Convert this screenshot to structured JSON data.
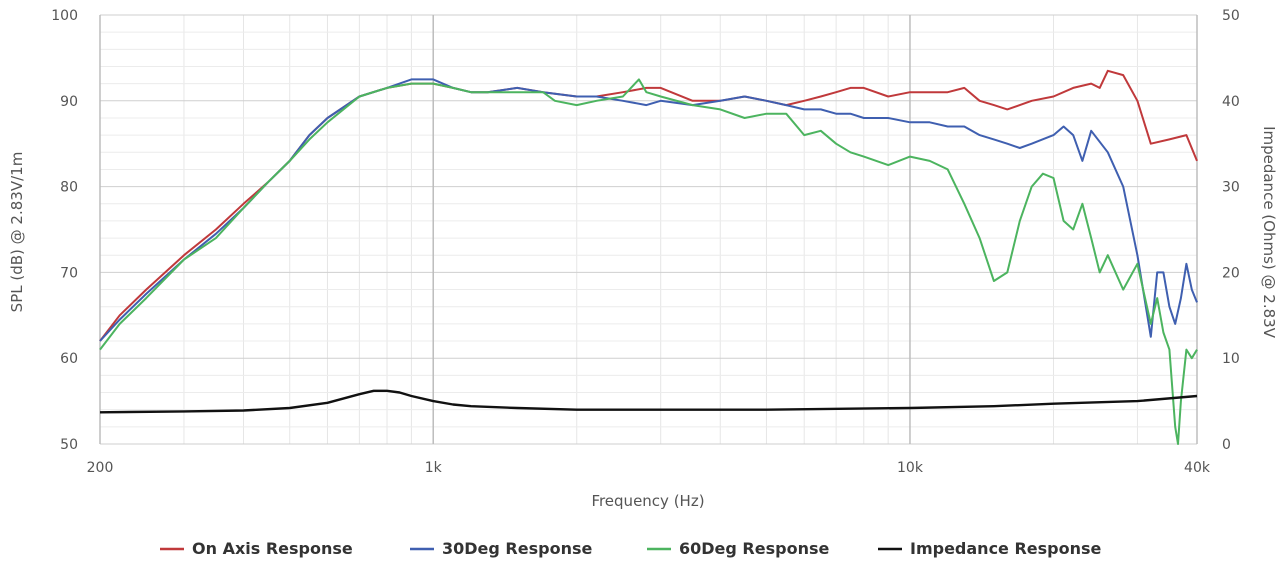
{
  "chart_data": {
    "type": "line",
    "xlabel": "Frequency (Hz)",
    "ylabel_left": "SPL (dB) @ 2.83V/1m",
    "ylabel_right": "Impedance (Ohms) @ 2.83V",
    "x_scale": "log",
    "xlim": [
      200,
      40000
    ],
    "ylim_left": [
      50,
      100
    ],
    "ylim_right": [
      0,
      50
    ],
    "x_ticks": [
      {
        "value": 200,
        "label": "200"
      },
      {
        "value": 1000,
        "label": "1k"
      },
      {
        "value": 10000,
        "label": "10k"
      },
      {
        "value": 40000,
        "label": "40k"
      }
    ],
    "y_ticks_left": [
      {
        "value": 50,
        "label": "50"
      },
      {
        "value": 60,
        "label": "60"
      },
      {
        "value": 70,
        "label": "70"
      },
      {
        "value": 80,
        "label": "80"
      },
      {
        "value": 90,
        "label": "90"
      },
      {
        "value": 100,
        "label": "100"
      }
    ],
    "y_ticks_right": [
      {
        "value": 0,
        "label": "0"
      },
      {
        "value": 10,
        "label": "10"
      },
      {
        "value": 20,
        "label": "20"
      },
      {
        "value": 30,
        "label": "30"
      },
      {
        "value": 40,
        "label": "40"
      },
      {
        "value": 50,
        "label": "50"
      }
    ],
    "grid": true,
    "legend_position": "bottom",
    "series": [
      {
        "name": "On Axis Response",
        "color": "#c0393b",
        "axis": "left",
        "x": [
          200,
          220,
          250,
          300,
          350,
          400,
          450,
          500,
          550,
          600,
          700,
          800,
          900,
          1000,
          1100,
          1200,
          1300,
          1500,
          1700,
          2000,
          2200,
          2500,
          2800,
          3000,
          3500,
          4000,
          4500,
          5000,
          5500,
          6000,
          6500,
          7000,
          7500,
          8000,
          9000,
          10000,
          11000,
          12000,
          13000,
          14000,
          15000,
          16000,
          17000,
          18000,
          20000,
          22000,
          24000,
          25000,
          26000,
          28000,
          30000,
          32000,
          35000,
          38000,
          40000
        ],
        "y": [
          62,
          65,
          68,
          72,
          75,
          78,
          80.5,
          83,
          86,
          88,
          90.5,
          91.5,
          92,
          92,
          91.5,
          91,
          91,
          91.5,
          91,
          90.5,
          90.5,
          91,
          91.5,
          91.5,
          90,
          90,
          90.5,
          90,
          89.5,
          90,
          90.5,
          91,
          91.5,
          91.5,
          90.5,
          91,
          91,
          91,
          91.5,
          90,
          89.5,
          89,
          89.5,
          90,
          90.5,
          91.5,
          92,
          91.5,
          93.5,
          93,
          90,
          85,
          85.5,
          86,
          83
        ]
      },
      {
        "name": "30Deg Response",
        "color": "#3f5fb0",
        "axis": "left",
        "x": [
          200,
          220,
          250,
          300,
          350,
          400,
          450,
          500,
          550,
          600,
          700,
          800,
          900,
          1000,
          1100,
          1200,
          1300,
          1500,
          1700,
          2000,
          2200,
          2500,
          2800,
          3000,
          3500,
          4000,
          4500,
          5000,
          5500,
          6000,
          6500,
          7000,
          7500,
          8000,
          9000,
          10000,
          11000,
          12000,
          13000,
          14000,
          15000,
          16000,
          17000,
          18000,
          20000,
          21000,
          22000,
          23000,
          24000,
          26000,
          28000,
          30000,
          32000,
          33000,
          34000,
          35000,
          36000,
          37000,
          38000,
          39000,
          40000
        ],
        "y": [
          62,
          64.5,
          67.5,
          71.5,
          74.5,
          77.5,
          80.5,
          83,
          86,
          88,
          90.5,
          91.5,
          92.5,
          92.5,
          91.5,
          91,
          91,
          91.5,
          91,
          90.5,
          90.5,
          90,
          89.5,
          90,
          89.5,
          90,
          90.5,
          90,
          89.5,
          89,
          89,
          88.5,
          88.5,
          88,
          88,
          87.5,
          87.5,
          87,
          87,
          86,
          85.5,
          85,
          84.5,
          85,
          86,
          87,
          86,
          83,
          86.5,
          84,
          80,
          72,
          62.5,
          70,
          70,
          66,
          64,
          67,
          71,
          68,
          66.5
        ]
      },
      {
        "name": "60Deg Response",
        "color": "#4cb45f",
        "axis": "left",
        "x": [
          200,
          220,
          250,
          300,
          350,
          400,
          450,
          500,
          550,
          600,
          700,
          800,
          900,
          1000,
          1100,
          1200,
          1300,
          1500,
          1700,
          1800,
          2000,
          2200,
          2500,
          2700,
          2800,
          3000,
          3500,
          4000,
          4500,
          5000,
          5500,
          6000,
          6500,
          7000,
          7500,
          8000,
          9000,
          10000,
          11000,
          12000,
          13000,
          14000,
          15000,
          16000,
          17000,
          18000,
          19000,
          20000,
          21000,
          22000,
          23000,
          24000,
          25000,
          26000,
          28000,
          30000,
          32000,
          33000,
          34000,
          35000,
          36000,
          36500,
          37000,
          38000,
          39000,
          40000
        ],
        "y": [
          61,
          64,
          67,
          71.5,
          74,
          77.5,
          80.5,
          83,
          85.5,
          87.5,
          90.5,
          91.5,
          92,
          92,
          91.5,
          91,
          91,
          91,
          91,
          90,
          89.5,
          90,
          90.5,
          92.5,
          91,
          90.5,
          89.5,
          89,
          88,
          88.5,
          88.5,
          86,
          86.5,
          85,
          84,
          83.5,
          82.5,
          83.5,
          83,
          82,
          78,
          74,
          69,
          70,
          76,
          80,
          81.5,
          81,
          76,
          75,
          78,
          74,
          70,
          72,
          68,
          71,
          64,
          67,
          63,
          61,
          52,
          50,
          55,
          61,
          60,
          61
        ]
      },
      {
        "name": "Impedance Response",
        "color": "#111111",
        "axis": "right",
        "x": [
          200,
          300,
          400,
          500,
          600,
          700,
          750,
          800,
          850,
          900,
          1000,
          1100,
          1200,
          1500,
          2000,
          3000,
          5000,
          10000,
          15000,
          20000,
          30000,
          40000
        ],
        "y": [
          3.7,
          3.8,
          3.9,
          4.2,
          4.8,
          5.8,
          6.2,
          6.2,
          6.0,
          5.6,
          5.0,
          4.6,
          4.4,
          4.2,
          4.0,
          4.0,
          4.0,
          4.2,
          4.4,
          4.7,
          5.0,
          5.6
        ]
      }
    ]
  }
}
